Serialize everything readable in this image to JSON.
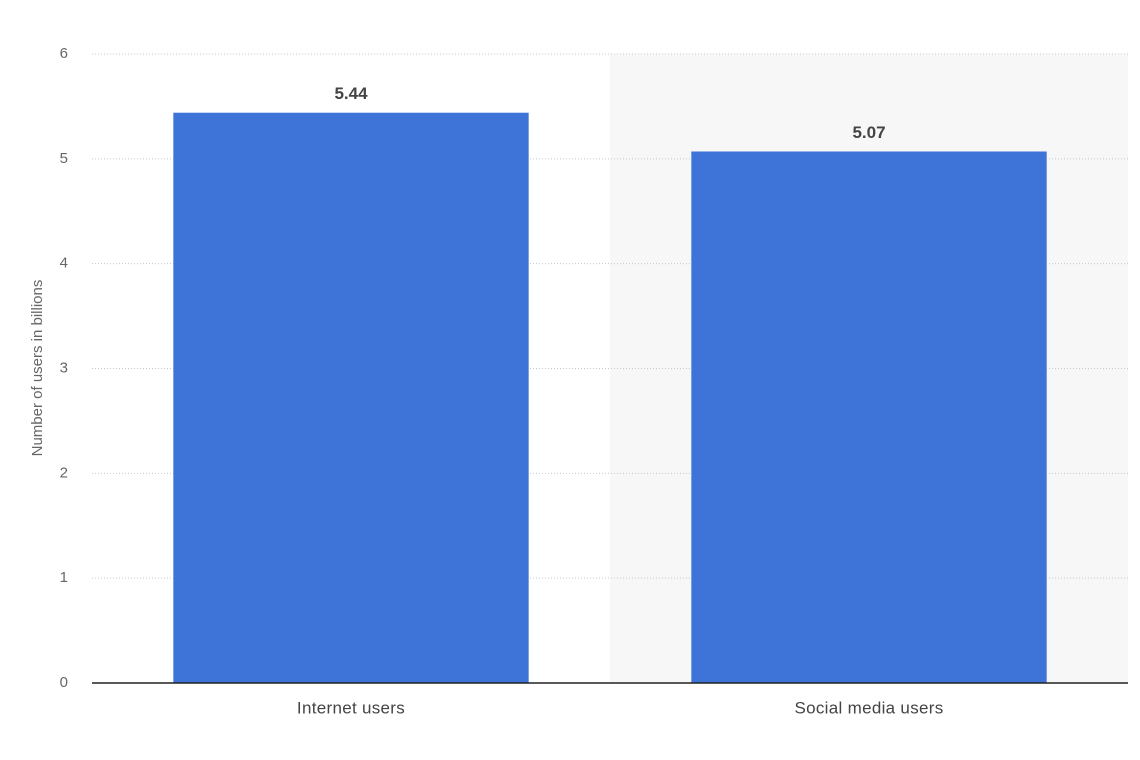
{
  "chart_data": {
    "type": "bar",
    "y_label": "Number of users in billions",
    "categories": [
      "Internet users",
      "Social media users"
    ],
    "values": [
      5.44,
      5.07
    ],
    "color": "#3e74d8",
    "ylim": [
      0,
      6
    ],
    "yticks": [
      0,
      1,
      2,
      3,
      4,
      5,
      6
    ],
    "grid": true
  }
}
